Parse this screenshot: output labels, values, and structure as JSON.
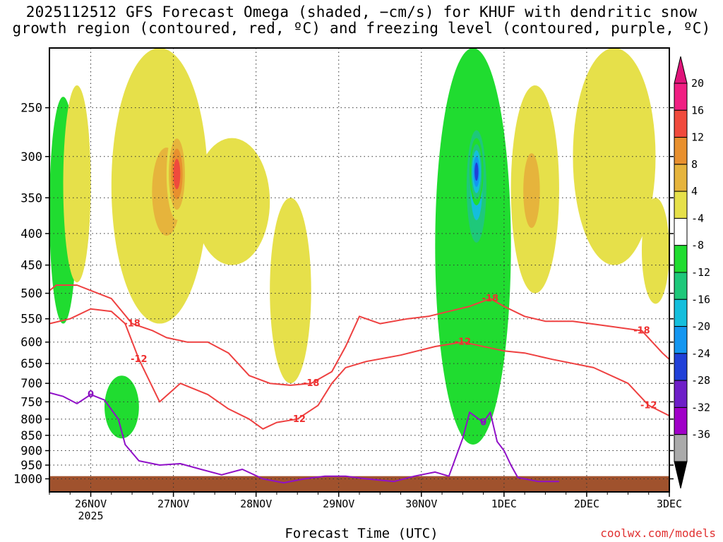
{
  "title_line1": "2025112512 GFS Forecast Omega (shaded, −cm/s) for KHUF with dendritic snow",
  "title_line2": "growth region (contoured, red, ºC) and freezing level (contoured, purple, ºC)",
  "x_axis_title": "Forecast Time (UTC)",
  "credit": "coolwx.com/models",
  "chart_data": {
    "type": "heatmap",
    "x_ticks": [
      "26NOV",
      "27NOV",
      "28NOV",
      "29NOV",
      "30NOV",
      "1DEC",
      "2DEC",
      "3DEC"
    ],
    "x_year_label": "2025",
    "x_range_hours": [
      -12,
      168
    ],
    "y_ticks": [
      250,
      300,
      350,
      400,
      450,
      500,
      550,
      600,
      650,
      700,
      750,
      800,
      850,
      900,
      950,
      1000
    ],
    "y_range_hpa": [
      200,
      1050
    ],
    "y_scale": "log-pressure",
    "grid": true,
    "colorbar": {
      "levels": [
        -36,
        -32,
        -28,
        -24,
        -20,
        -16,
        -12,
        -8,
        -4,
        4,
        8,
        12,
        16,
        20
      ],
      "colors": [
        "#aaaaaa",
        "#a000c8",
        "#6e1ec8",
        "#2040d8",
        "#1496f0",
        "#14bedc",
        "#1ec87a",
        "#20dc30",
        "#ffffff",
        "#e6e04a",
        "#e6b43c",
        "#e8902e",
        "#f04a3c",
        "#f01e82"
      ],
      "below_color": "#000000",
      "above_color": "#e0147a"
    },
    "omega_features": [
      {
        "name": "rise-1",
        "t": [
          -12,
          -4
        ],
        "p": [
          240,
          560
        ],
        "value": -6
      },
      {
        "name": "sink-1",
        "t": [
          -8,
          0
        ],
        "p": [
          230,
          480
        ],
        "value": 5
      },
      {
        "name": "sink-2",
        "t": [
          6,
          34
        ],
        "p": [
          200,
          560
        ],
        "value": 6
      },
      {
        "name": "sink-core-1",
        "t": [
          15,
          29
        ],
        "p": [
          260,
          450
        ],
        "value": 11
      },
      {
        "name": "sink-core-2",
        "t": [
          22,
          28
        ],
        "p": [
          270,
          380
        ],
        "value": 17
      },
      {
        "name": "rise-2",
        "t": [
          4,
          14
        ],
        "p": [
          680,
          860
        ],
        "value": -7
      },
      {
        "name": "sink-3",
        "t": [
          30,
          52
        ],
        "p": [
          280,
          450
        ],
        "value": 5
      },
      {
        "name": "sink-4",
        "t": [
          52,
          64
        ],
        "p": [
          350,
          700
        ],
        "value": 6
      },
      {
        "name": "rise-3",
        "t": [
          100,
          122
        ],
        "p": [
          200,
          880
        ],
        "value": -7
      },
      {
        "name": "rise-core-3",
        "t": [
          108,
          116
        ],
        "p": [
          250,
          450
        ],
        "value": -14
      },
      {
        "name": "rise-core-4",
        "t": [
          110,
          114
        ],
        "p": [
          280,
          360
        ],
        "value": -23
      },
      {
        "name": "sink-5",
        "t": [
          122,
          136
        ],
        "p": [
          230,
          500
        ],
        "value": 6
      },
      {
        "name": "sink-core-5",
        "t": [
          124,
          132
        ],
        "p": [
          270,
          430
        ],
        "value": 11
      },
      {
        "name": "sink-6",
        "t": [
          140,
          164
        ],
        "p": [
          200,
          450
        ],
        "value": 5
      },
      {
        "name": "sink-7",
        "t": [
          160,
          168
        ],
        "p": [
          350,
          520
        ],
        "value": 5
      }
    ],
    "contours_red_dgz": [
      {
        "label": "-18",
        "points": [
          [
            -12,
            495
          ],
          [
            -10,
            485
          ],
          [
            -4,
            485
          ],
          [
            6,
            510
          ],
          [
            12,
            560
          ],
          [
            18,
            575
          ],
          [
            22,
            590
          ],
          [
            28,
            600
          ],
          [
            34,
            600
          ],
          [
            40,
            625
          ],
          [
            46,
            680
          ],
          [
            52,
            700
          ],
          [
            58,
            705
          ],
          [
            64,
            700
          ],
          [
            70,
            670
          ],
          [
            74,
            610
          ],
          [
            78,
            545
          ],
          [
            84,
            560
          ],
          [
            92,
            550
          ],
          [
            98,
            545
          ],
          [
            104,
            535
          ],
          [
            110,
            525
          ],
          [
            116,
            510
          ],
          [
            120,
            525
          ],
          [
            126,
            545
          ],
          [
            132,
            555
          ],
          [
            140,
            555
          ],
          [
            150,
            565
          ],
          [
            160,
            575
          ],
          [
            166,
            625
          ],
          [
            168,
            640
          ]
        ]
      },
      {
        "label": "-12",
        "points": [
          [
            -12,
            560
          ],
          [
            -6,
            550
          ],
          [
            0,
            530
          ],
          [
            6,
            535
          ],
          [
            10,
            560
          ],
          [
            14,
            640
          ],
          [
            20,
            750
          ],
          [
            26,
            700
          ],
          [
            34,
            730
          ],
          [
            40,
            770
          ],
          [
            46,
            800
          ],
          [
            50,
            830
          ],
          [
            54,
            810
          ],
          [
            60,
            800
          ],
          [
            66,
            760
          ],
          [
            70,
            700
          ],
          [
            74,
            660
          ],
          [
            80,
            645
          ],
          [
            90,
            630
          ],
          [
            100,
            610
          ],
          [
            108,
            600
          ],
          [
            114,
            610
          ],
          [
            120,
            620
          ],
          [
            126,
            625
          ],
          [
            134,
            640
          ],
          [
            146,
            660
          ],
          [
            156,
            700
          ],
          [
            162,
            760
          ],
          [
            168,
            790
          ]
        ]
      }
    ],
    "contours_purple_freezing": [
      {
        "label": "0",
        "points": [
          [
            -12,
            725
          ],
          [
            -8,
            735
          ],
          [
            -4,
            755
          ],
          [
            0,
            730
          ],
          [
            4,
            745
          ],
          [
            8,
            800
          ],
          [
            10,
            880
          ],
          [
            14,
            935
          ],
          [
            20,
            950
          ],
          [
            26,
            945
          ],
          [
            32,
            965
          ],
          [
            38,
            985
          ],
          [
            44,
            965
          ],
          [
            50,
            1000
          ],
          [
            56,
            1015
          ],
          [
            62,
            1000
          ],
          [
            68,
            990
          ],
          [
            74,
            990
          ],
          [
            80,
            1000
          ],
          [
            88,
            1010
          ],
          [
            94,
            990
          ],
          [
            100,
            975
          ],
          [
            104,
            990
          ],
          [
            108,
            860
          ],
          [
            110,
            780
          ],
          [
            114,
            810
          ],
          [
            116,
            780
          ],
          [
            118,
            870
          ],
          [
            120,
            900
          ],
          [
            122,
            950
          ],
          [
            124,
            995
          ],
          [
            130,
            1010
          ],
          [
            136,
            1010
          ]
        ]
      }
    ],
    "terrain_color": "#a0522d",
    "terrain_top_hpa": 990
  }
}
